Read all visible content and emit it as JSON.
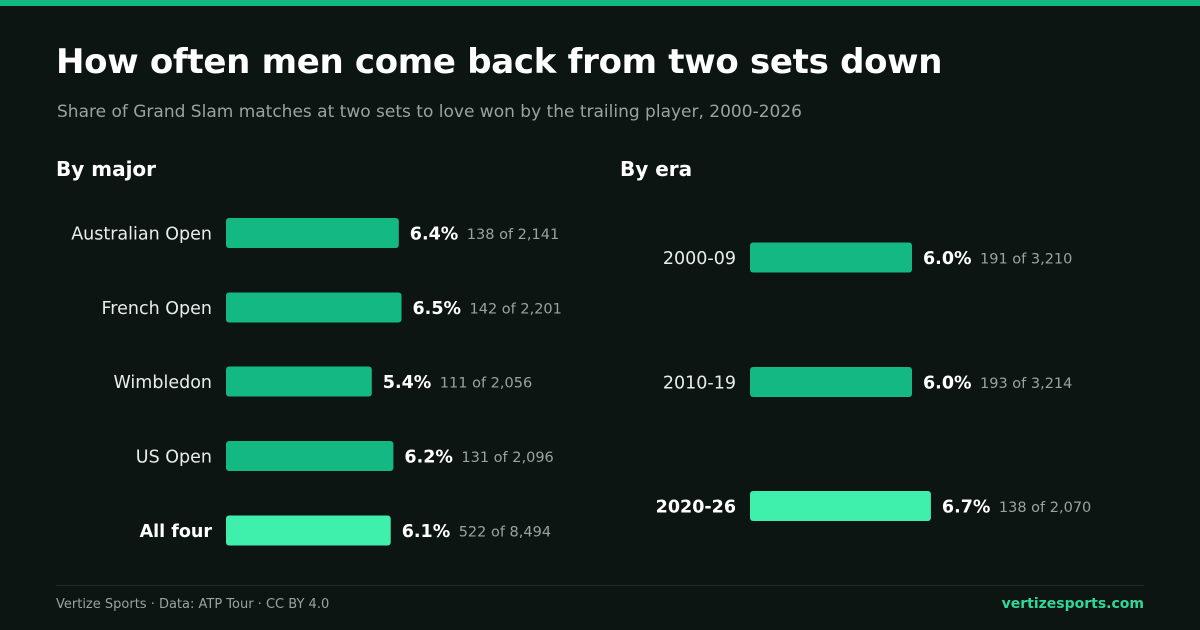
{
  "title": "How often men come back from two sets down",
  "subtitle": "Share of Grand Slam matches at two sets to love won by the trailing player, 2000-2026",
  "colors": {
    "accent": "#14b883",
    "highlight": "#3ef0ac",
    "background": "#0d1513"
  },
  "chart_data": [
    {
      "type": "bar",
      "orientation": "horizontal",
      "title": "By major",
      "categories": [
        "Australian Open",
        "French Open",
        "Wimbledon",
        "US Open",
        "All four"
      ],
      "values": [
        6.4,
        6.5,
        5.4,
        6.2,
        6.1
      ],
      "value_labels": [
        "6.4%",
        "6.5%",
        "5.4%",
        "6.2%",
        "6.1%"
      ],
      "count_labels": [
        "138 of 2,141",
        "142 of 2,201",
        "111 of 2,056",
        "131 of 2,096",
        "522 of 8,494"
      ],
      "highlight": [
        false,
        false,
        false,
        false,
        true
      ],
      "unit": "%",
      "grid": false
    },
    {
      "type": "bar",
      "orientation": "horizontal",
      "title": "By era",
      "categories": [
        "2000-09",
        "2010-19",
        "2020-26"
      ],
      "values": [
        6.0,
        6.0,
        6.7
      ],
      "value_labels": [
        "6.0%",
        "6.0%",
        "6.7%"
      ],
      "count_labels": [
        "191 of 3,210",
        "193 of 3,214",
        "138 of 2,070"
      ],
      "highlight": [
        false,
        false,
        true
      ],
      "unit": "%",
      "grid": false
    }
  ],
  "footer": {
    "credit": "Vertize Sports · Data: ATP Tour · CC BY 4.0",
    "site": "vertizesports.com"
  }
}
